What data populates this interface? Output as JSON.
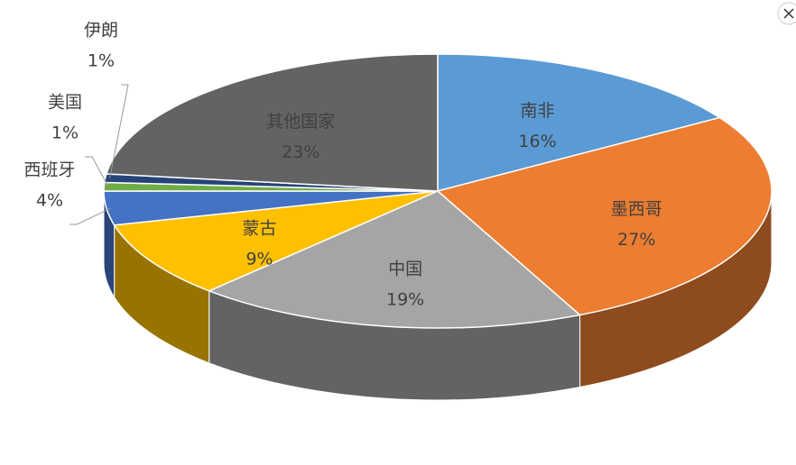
{
  "chart_data": {
    "type": "pie",
    "categories": [
      "南非",
      "墨西哥",
      "中国",
      "蒙古",
      "西班牙",
      "美国",
      "伊朗",
      "其他国家"
    ],
    "values": [
      16,
      27,
      19,
      9,
      4,
      1,
      1,
      23
    ],
    "value_labels": [
      "16%",
      "27%",
      "19%",
      "9%",
      "4%",
      "1%",
      "1%",
      "23%"
    ],
    "colors": [
      "#5b9bd5",
      "#ed7d31",
      "#a5a5a5",
      "#ffc000",
      "#4472c4",
      "#70ad47",
      "#264478",
      "#636363"
    ]
  }
}
